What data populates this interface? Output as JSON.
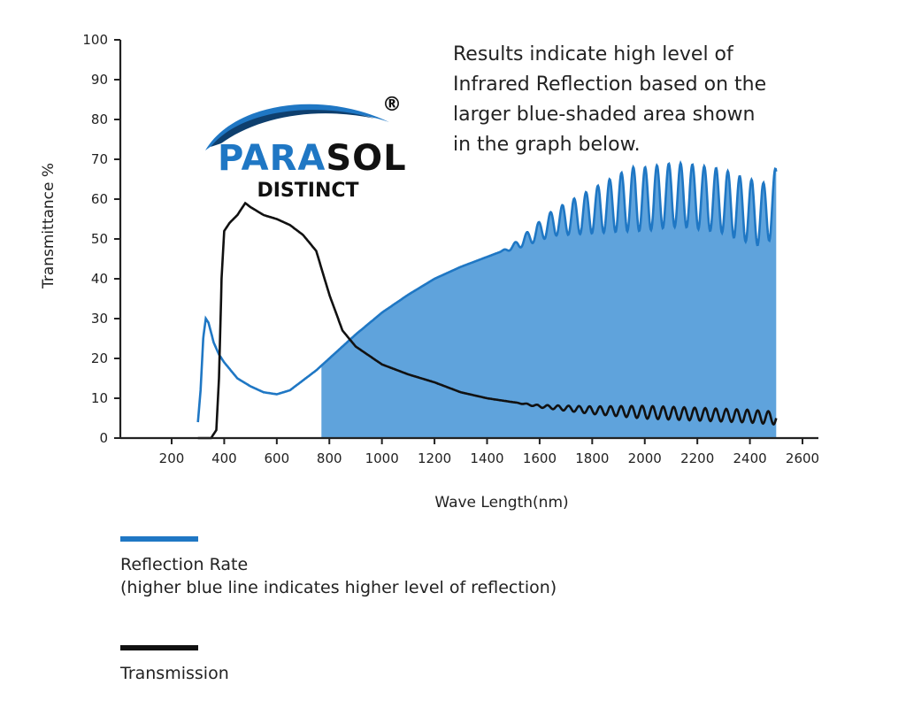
{
  "chart_data": {
    "type": "line",
    "title": "",
    "xlabel": "Wave Length(nm)",
    "ylabel": "Transmittance %",
    "xlim": [
      0,
      2600
    ],
    "ylim": [
      0,
      100
    ],
    "x_ticks": [
      200,
      400,
      600,
      800,
      1000,
      1200,
      1400,
      1600,
      1800,
      2000,
      2200,
      2400,
      2600
    ],
    "y_ticks": [
      0,
      10,
      20,
      30,
      40,
      50,
      60,
      70,
      80,
      90,
      100
    ],
    "x_tick_labels": [
      "200",
      "400",
      "600",
      "800",
      "1000",
      "1200",
      "1400",
      "1600",
      "1800",
      "2000",
      "2200",
      "2400",
      "2600"
    ],
    "y_tick_labels": [
      "0",
      "10",
      "20",
      "30",
      "40",
      "50",
      "60",
      "70",
      "80",
      "90",
      "100"
    ],
    "shaded_region": {
      "series": "Reflection Rate",
      "x_start": 770,
      "x_end": 2500,
      "color": "#5fa3dc"
    },
    "series": [
      {
        "name": "Reflection Rate",
        "color": "#1f77c4",
        "x": [
          300,
          310,
          320,
          330,
          340,
          360,
          380,
          400,
          450,
          500,
          550,
          600,
          650,
          700,
          750,
          800,
          900,
          1000,
          1100,
          1200,
          1300,
          1400,
          1500,
          1550,
          1600,
          1650,
          1700,
          1750,
          1800,
          1850,
          1900,
          1950,
          2000,
          2050,
          2100,
          2150,
          2200,
          2250,
          2300,
          2350,
          2400,
          2450,
          2480,
          2500
        ],
        "values": [
          4,
          12,
          25,
          30,
          29,
          24,
          21,
          19,
          15,
          13,
          11.5,
          11,
          12,
          14.5,
          17,
          20,
          26,
          31.5,
          36,
          40,
          43,
          45.5,
          48,
          50,
          52,
          54,
          55,
          56,
          57,
          58,
          59,
          60,
          60,
          60.5,
          61,
          61,
          60.5,
          60,
          59.5,
          58,
          57,
          56,
          58,
          60
        ],
        "oscillation": {
          "start_x": 1450,
          "max_amplitude": 8,
          "period_nm": 45
        }
      },
      {
        "name": "Transmission",
        "color": "#111111",
        "x": [
          300,
          350,
          370,
          380,
          390,
          400,
          420,
          450,
          480,
          500,
          550,
          600,
          650,
          700,
          750,
          800,
          850,
          900,
          1000,
          1100,
          1200,
          1300,
          1400,
          1500,
          1600,
          1800,
          2000,
          2200,
          2400,
          2500
        ],
        "values": [
          0,
          0,
          2,
          15,
          40,
          52,
          54,
          56,
          59,
          58,
          56,
          55,
          53.5,
          51,
          47,
          36,
          27,
          23,
          18.5,
          16,
          14,
          11.5,
          10,
          9,
          8,
          7,
          6.5,
          6,
          5.5,
          5
        ],
        "oscillation": {
          "start_x": 1500,
          "max_amplitude": 1.6,
          "period_nm": 40
        }
      }
    ],
    "legend": [
      {
        "label": "Reflection Rate",
        "sublabel": "(higher blue line indicates higher level of reflection)",
        "color": "#1f77c4"
      },
      {
        "label": "Transmission",
        "color": "#111111"
      }
    ],
    "annotation": [
      "Results indicate high level of",
      "Infrared Reflection based on the",
      "larger blue-shaded area shown",
      "in the graph below."
    ]
  },
  "logo": {
    "name": "PARASOL",
    "sub": "DISTINCT",
    "mark": "®",
    "color_primary": "#1f77c4",
    "color_dark": "#111111"
  },
  "colors": {
    "reflection": "#1f77c4",
    "shade": "#5fa3dc",
    "transmission": "#111111",
    "axis": "#222222"
  }
}
